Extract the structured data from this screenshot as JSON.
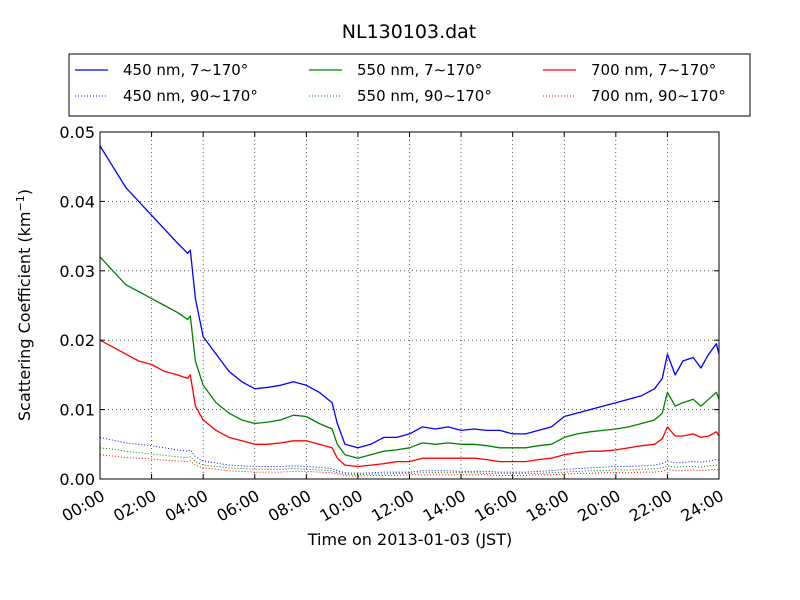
{
  "chart_data": {
    "type": "line",
    "title": "NL130103.dat",
    "xlabel": "Time on 2013-01-03 (JST)",
    "ylabel": "Scattering Coefficient (km",
    "ylabel_exponent": "−1",
    "ylabel_suffix": ")",
    "xlim": [
      0,
      24
    ],
    "ylim": [
      0,
      0.05
    ],
    "grid": true,
    "legend_position": "top, above plot",
    "x_ticks": [
      0,
      2,
      4,
      6,
      8,
      10,
      12,
      14,
      16,
      18,
      20,
      22,
      24
    ],
    "x_tick_labels": [
      "00:00",
      "02:00",
      "04:00",
      "06:00",
      "08:00",
      "10:00",
      "12:00",
      "14:00",
      "16:00",
      "18:00",
      "20:00",
      "22:00",
      "24:00"
    ],
    "y_ticks": [
      0,
      0.01,
      0.02,
      0.03,
      0.04,
      0.05
    ],
    "y_tick_labels": [
      "0.00",
      "0.01",
      "0.02",
      "0.03",
      "0.04",
      "0.05"
    ],
    "x": [
      0,
      0.5,
      1,
      1.5,
      2,
      2.5,
      3,
      3.4,
      3.5,
      3.7,
      4,
      4.5,
      5,
      5.5,
      6,
      6.5,
      7,
      7.5,
      8,
      8.5,
      9,
      9.2,
      9.5,
      10,
      10.5,
      11,
      11.5,
      12,
      12.5,
      13,
      13.5,
      14,
      14.5,
      15,
      15.5,
      16,
      16.5,
      17,
      17.5,
      18,
      18.5,
      19,
      19.5,
      20,
      20.5,
      21,
      21.5,
      21.8,
      22,
      22.3,
      22.6,
      23,
      23.3,
      23.6,
      23.9,
      24
    ],
    "series": [
      {
        "name": "450 nm, 7∼170°",
        "color": "#0000ff",
        "style": "solid",
        "values": [
          0.048,
          0.045,
          0.042,
          0.04,
          0.038,
          0.036,
          0.034,
          0.0325,
          0.033,
          0.026,
          0.0205,
          0.018,
          0.0155,
          0.014,
          0.013,
          0.0132,
          0.0135,
          0.014,
          0.0135,
          0.0125,
          0.011,
          0.008,
          0.005,
          0.0045,
          0.005,
          0.006,
          0.006,
          0.0065,
          0.0075,
          0.0072,
          0.0075,
          0.007,
          0.0072,
          0.007,
          0.007,
          0.0065,
          0.0065,
          0.007,
          0.0075,
          0.009,
          0.0095,
          0.01,
          0.0105,
          0.011,
          0.0115,
          0.012,
          0.013,
          0.0145,
          0.018,
          0.015,
          0.017,
          0.0175,
          0.016,
          0.018,
          0.0195,
          0.018
        ]
      },
      {
        "name": "550 nm, 7∼170°",
        "color": "#008000",
        "style": "solid",
        "values": [
          0.032,
          0.03,
          0.028,
          0.027,
          0.026,
          0.025,
          0.024,
          0.023,
          0.0235,
          0.017,
          0.0135,
          0.011,
          0.0095,
          0.0085,
          0.008,
          0.0082,
          0.0085,
          0.0092,
          0.009,
          0.008,
          0.0072,
          0.005,
          0.0035,
          0.003,
          0.0035,
          0.004,
          0.0042,
          0.0045,
          0.0052,
          0.005,
          0.0052,
          0.005,
          0.005,
          0.0048,
          0.0045,
          0.0045,
          0.0045,
          0.0048,
          0.005,
          0.006,
          0.0065,
          0.0068,
          0.007,
          0.0072,
          0.0075,
          0.008,
          0.0085,
          0.0095,
          0.0125,
          0.0105,
          0.011,
          0.0115,
          0.0105,
          0.0115,
          0.0125,
          0.0115
        ]
      },
      {
        "name": "700 nm, 7∼170°",
        "color": "#ff0000",
        "style": "solid",
        "values": [
          0.02,
          0.019,
          0.018,
          0.017,
          0.0165,
          0.0155,
          0.015,
          0.0145,
          0.015,
          0.0105,
          0.0085,
          0.007,
          0.006,
          0.0055,
          0.005,
          0.005,
          0.0052,
          0.0055,
          0.0055,
          0.005,
          0.0045,
          0.003,
          0.002,
          0.0018,
          0.002,
          0.0022,
          0.0025,
          0.0025,
          0.003,
          0.003,
          0.003,
          0.003,
          0.003,
          0.0028,
          0.0025,
          0.0025,
          0.0025,
          0.0028,
          0.003,
          0.0035,
          0.0038,
          0.004,
          0.004,
          0.0042,
          0.0045,
          0.0048,
          0.005,
          0.0058,
          0.0075,
          0.0062,
          0.0062,
          0.0065,
          0.006,
          0.0062,
          0.0068,
          0.0062
        ]
      },
      {
        "name": "450 nm, 90∼170°",
        "color": "#0000ff",
        "style": "dotted",
        "values": [
          0.006,
          0.0056,
          0.0052,
          0.005,
          0.0048,
          0.0045,
          0.0042,
          0.004,
          0.0042,
          0.0032,
          0.0026,
          0.0023,
          0.002,
          0.0019,
          0.0018,
          0.0018,
          0.0018,
          0.0019,
          0.0018,
          0.0017,
          0.0015,
          0.0012,
          0.0009,
          0.0008,
          0.0009,
          0.001,
          0.001,
          0.001,
          0.0012,
          0.0012,
          0.0012,
          0.0011,
          0.0011,
          0.0011,
          0.001,
          0.001,
          0.001,
          0.0011,
          0.0012,
          0.0014,
          0.0015,
          0.0016,
          0.0017,
          0.0018,
          0.0018,
          0.0019,
          0.002,
          0.0022,
          0.0026,
          0.0023,
          0.0024,
          0.0025,
          0.0024,
          0.0026,
          0.0028,
          0.0027
        ]
      },
      {
        "name": "550 nm, 90∼170°",
        "color": "#008000",
        "style": "dotted",
        "values": [
          0.0045,
          0.0043,
          0.004,
          0.0038,
          0.0036,
          0.0034,
          0.0032,
          0.0031,
          0.0032,
          0.0025,
          0.002,
          0.0018,
          0.0016,
          0.0015,
          0.0014,
          0.0014,
          0.0014,
          0.0015,
          0.0014,
          0.0013,
          0.0012,
          0.0009,
          0.0007,
          0.0006,
          0.0007,
          0.0007,
          0.0008,
          0.0008,
          0.0009,
          0.0009,
          0.0009,
          0.0009,
          0.0009,
          0.0008,
          0.0008,
          0.0008,
          0.0008,
          0.0008,
          0.0009,
          0.001,
          0.0011,
          0.0012,
          0.0012,
          0.0013,
          0.0013,
          0.0014,
          0.0015,
          0.0016,
          0.0019,
          0.0017,
          0.0018,
          0.0018,
          0.0017,
          0.0019,
          0.002,
          0.0019
        ]
      },
      {
        "name": "700 nm, 90∼170°",
        "color": "#ff0000",
        "style": "dotted",
        "values": [
          0.0035,
          0.0033,
          0.0031,
          0.003,
          0.0029,
          0.0027,
          0.0026,
          0.0025,
          0.0026,
          0.002,
          0.0016,
          0.0014,
          0.0012,
          0.0011,
          0.001,
          0.001,
          0.001,
          0.0011,
          0.0011,
          0.001,
          0.0009,
          0.0007,
          0.0005,
          0.0004,
          0.0005,
          0.0005,
          0.0005,
          0.0006,
          0.0006,
          0.0006,
          0.0006,
          0.0006,
          0.0006,
          0.0006,
          0.0005,
          0.0005,
          0.0005,
          0.0006,
          0.0006,
          0.0007,
          0.0008,
          0.0008,
          0.0009,
          0.0009,
          0.0009,
          0.001,
          0.001,
          0.0011,
          0.0014,
          0.0012,
          0.0012,
          0.0013,
          0.0012,
          0.0013,
          0.0014,
          0.0013
        ]
      }
    ]
  }
}
